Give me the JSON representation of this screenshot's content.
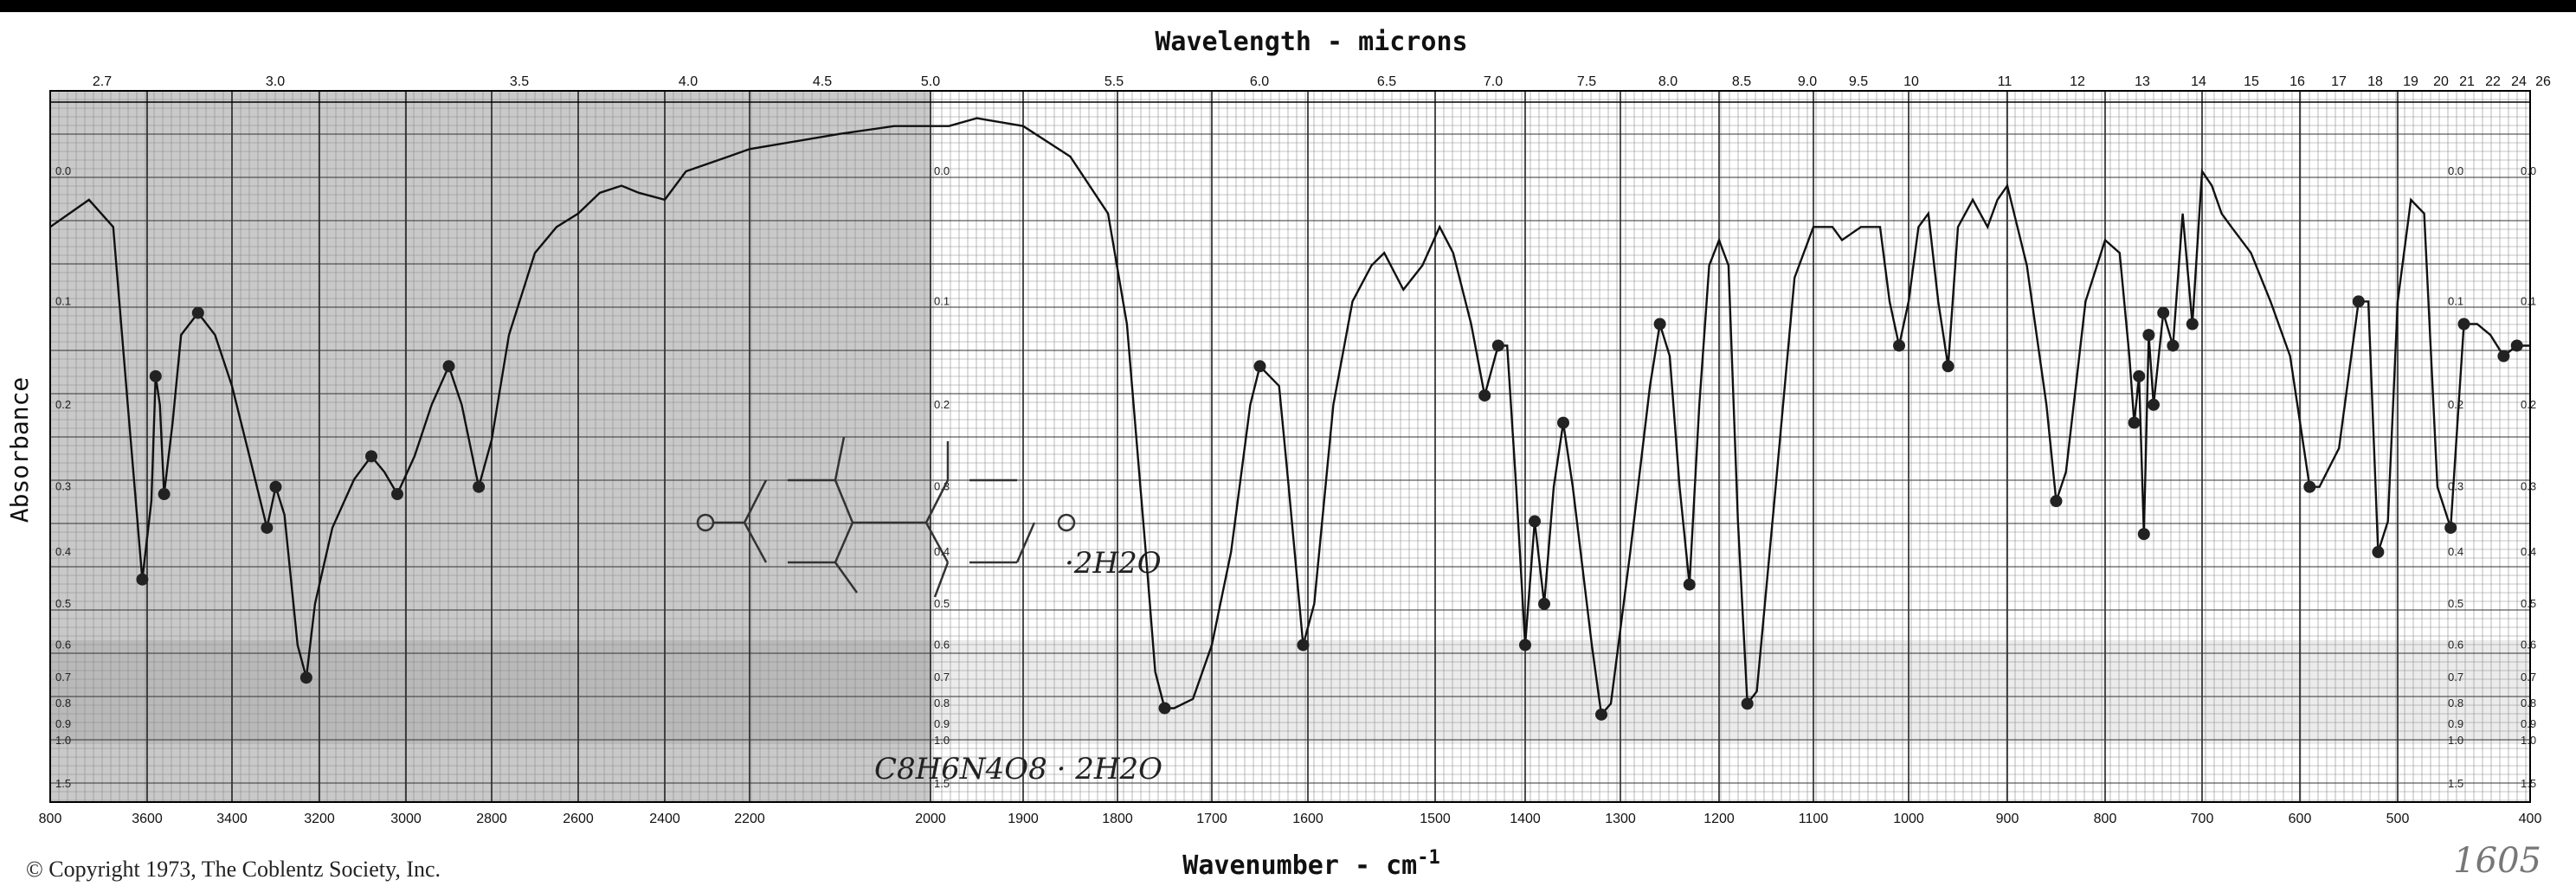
{
  "chart_data": {
    "type": "line",
    "title": "Wavelength - microns",
    "xlabel": "Wavenumber - cm",
    "xlabel_sup": "-1",
    "ylabel": "Absorbance",
    "x_reversed": true,
    "grid": true,
    "bottom_ticks": [
      "800",
      "3600",
      "3400",
      "3200",
      "3000",
      "2800",
      "2600",
      "2400",
      "2200",
      "2000",
      "1900",
      "1800",
      "1700",
      "1600",
      "1500",
      "1400",
      "1300",
      "1200",
      "1100",
      "1000",
      "900",
      "800",
      "700",
      "600",
      "500",
      "400"
    ],
    "top_ticks": [
      "2.7",
      "3.0",
      "3.5",
      "4.0",
      "4.5",
      "5.0",
      "5.5",
      "6.0",
      "6.5",
      "7.0",
      "7.5",
      "8.0",
      "8.5",
      "9.0",
      "9.5",
      "10",
      "11",
      "12",
      "13",
      "14",
      "15",
      "16",
      "17",
      "18",
      "19",
      "20",
      "21",
      "22",
      "24",
      "26"
    ],
    "absorbance_ticks": [
      "0.0",
      "0.1",
      "0.2",
      "0.3",
      "0.4",
      "0.5",
      "0.6",
      "0.7",
      "0.8",
      "0.9",
      "1.0",
      "1.5"
    ],
    "series": [
      {
        "values": [
          [
            3800,
            0.04
          ],
          [
            3720,
            0.02
          ],
          [
            3670,
            0.04
          ],
          [
            3640,
            0.2
          ],
          [
            3610,
            0.45
          ],
          [
            3590,
            0.32
          ],
          [
            3580,
            0.17
          ],
          [
            3570,
            0.2
          ],
          [
            3560,
            0.31
          ],
          [
            3540,
            0.22
          ],
          [
            3520,
            0.13
          ],
          [
            3480,
            0.11
          ],
          [
            3440,
            0.13
          ],
          [
            3400,
            0.18
          ],
          [
            3360,
            0.26
          ],
          [
            3320,
            0.36
          ],
          [
            3300,
            0.3
          ],
          [
            3280,
            0.34
          ],
          [
            3250,
            0.6
          ],
          [
            3230,
            0.7
          ],
          [
            3210,
            0.5
          ],
          [
            3170,
            0.36
          ],
          [
            3120,
            0.29
          ],
          [
            3080,
            0.26
          ],
          [
            3050,
            0.28
          ],
          [
            3020,
            0.31
          ],
          [
            2980,
            0.26
          ],
          [
            2940,
            0.2
          ],
          [
            2900,
            0.16
          ],
          [
            2870,
            0.2
          ],
          [
            2830,
            0.3
          ],
          [
            2800,
            0.24
          ],
          [
            2760,
            0.13
          ],
          [
            2700,
            0.06
          ],
          [
            2650,
            0.04
          ],
          [
            2600,
            0.03
          ],
          [
            2550,
            0.015
          ],
          [
            2500,
            0.01
          ],
          [
            2460,
            0.015
          ],
          [
            2400,
            0.02
          ],
          [
            2350,
            0.0
          ],
          [
            2300,
            -0.005
          ],
          [
            2250,
            -0.01
          ],
          [
            2200,
            -0.015
          ],
          [
            2100,
            -0.025
          ],
          [
            2040,
            -0.03
          ],
          [
            1980,
            -0.03
          ],
          [
            1950,
            -0.035
          ],
          [
            1900,
            -0.03
          ],
          [
            1850,
            -0.01
          ],
          [
            1810,
            0.03
          ],
          [
            1790,
            0.12
          ],
          [
            1770,
            0.4
          ],
          [
            1760,
            0.68
          ],
          [
            1750,
            0.82
          ],
          [
            1740,
            0.82
          ],
          [
            1720,
            0.78
          ],
          [
            1700,
            0.6
          ],
          [
            1680,
            0.4
          ],
          [
            1660,
            0.2
          ],
          [
            1650,
            0.16
          ],
          [
            1630,
            0.18
          ],
          [
            1620,
            0.3
          ],
          [
            1605,
            0.6
          ],
          [
            1595,
            0.5
          ],
          [
            1580,
            0.2
          ],
          [
            1565,
            0.1
          ],
          [
            1550,
            0.07
          ],
          [
            1540,
            0.06
          ],
          [
            1525,
            0.09
          ],
          [
            1510,
            0.07
          ],
          [
            1495,
            0.04
          ],
          [
            1480,
            0.06
          ],
          [
            1460,
            0.12
          ],
          [
            1445,
            0.19
          ],
          [
            1430,
            0.14
          ],
          [
            1420,
            0.14
          ],
          [
            1410,
            0.3
          ],
          [
            1400,
            0.6
          ],
          [
            1390,
            0.35
          ],
          [
            1380,
            0.5
          ],
          [
            1370,
            0.3
          ],
          [
            1360,
            0.22
          ],
          [
            1350,
            0.3
          ],
          [
            1330,
            0.6
          ],
          [
            1320,
            0.85
          ],
          [
            1310,
            0.8
          ],
          [
            1290,
            0.4
          ],
          [
            1270,
            0.18
          ],
          [
            1260,
            0.12
          ],
          [
            1250,
            0.15
          ],
          [
            1240,
            0.3
          ],
          [
            1230,
            0.46
          ],
          [
            1220,
            0.2
          ],
          [
            1210,
            0.07
          ],
          [
            1200,
            0.05
          ],
          [
            1190,
            0.07
          ],
          [
            1180,
            0.35
          ],
          [
            1170,
            0.8
          ],
          [
            1160,
            0.75
          ],
          [
            1140,
            0.3
          ],
          [
            1120,
            0.08
          ],
          [
            1100,
            0.04
          ],
          [
            1080,
            0.04
          ],
          [
            1070,
            0.05
          ],
          [
            1050,
            0.04
          ],
          [
            1030,
            0.04
          ],
          [
            1020,
            0.1
          ],
          [
            1010,
            0.14
          ],
          [
            1000,
            0.1
          ],
          [
            990,
            0.04
          ],
          [
            980,
            0.03
          ],
          [
            970,
            0.1
          ],
          [
            960,
            0.16
          ],
          [
            950,
            0.04
          ],
          [
            935,
            0.02
          ],
          [
            920,
            0.04
          ],
          [
            910,
            0.02
          ],
          [
            900,
            0.01
          ],
          [
            880,
            0.07
          ],
          [
            860,
            0.2
          ],
          [
            850,
            0.32
          ],
          [
            840,
            0.28
          ],
          [
            820,
            0.1
          ],
          [
            800,
            0.05
          ],
          [
            785,
            0.06
          ],
          [
            775,
            0.15
          ],
          [
            770,
            0.22
          ],
          [
            765,
            0.17
          ],
          [
            760,
            0.37
          ],
          [
            755,
            0.13
          ],
          [
            750,
            0.2
          ],
          [
            740,
            0.11
          ],
          [
            730,
            0.14
          ],
          [
            720,
            0.03
          ],
          [
            710,
            0.12
          ],
          [
            700,
            0.0
          ],
          [
            690,
            0.01
          ],
          [
            680,
            0.03
          ],
          [
            670,
            0.04
          ],
          [
            650,
            0.06
          ],
          [
            630,
            0.1
          ],
          [
            610,
            0.15
          ],
          [
            590,
            0.3
          ],
          [
            580,
            0.3
          ],
          [
            560,
            0.25
          ],
          [
            540,
            0.1
          ],
          [
            530,
            0.1
          ],
          [
            520,
            0.4
          ],
          [
            510,
            0.35
          ],
          [
            500,
            0.1
          ],
          [
            490,
            0.02
          ],
          [
            480,
            0.03
          ],
          [
            470,
            0.3
          ],
          [
            460,
            0.36
          ],
          [
            450,
            0.12
          ],
          [
            440,
            0.12
          ],
          [
            430,
            0.13
          ],
          [
            420,
            0.15
          ],
          [
            410,
            0.14
          ],
          [
            400,
            0.14
          ]
        ]
      }
    ],
    "annotations": {
      "molecular_formula": "C8H6N4O8 · 2H2O",
      "structure_suffix": "·2H2O"
    }
  },
  "copyright": "© Copyright 1973, The Coblentz Society, Inc.",
  "signoff": "1605"
}
